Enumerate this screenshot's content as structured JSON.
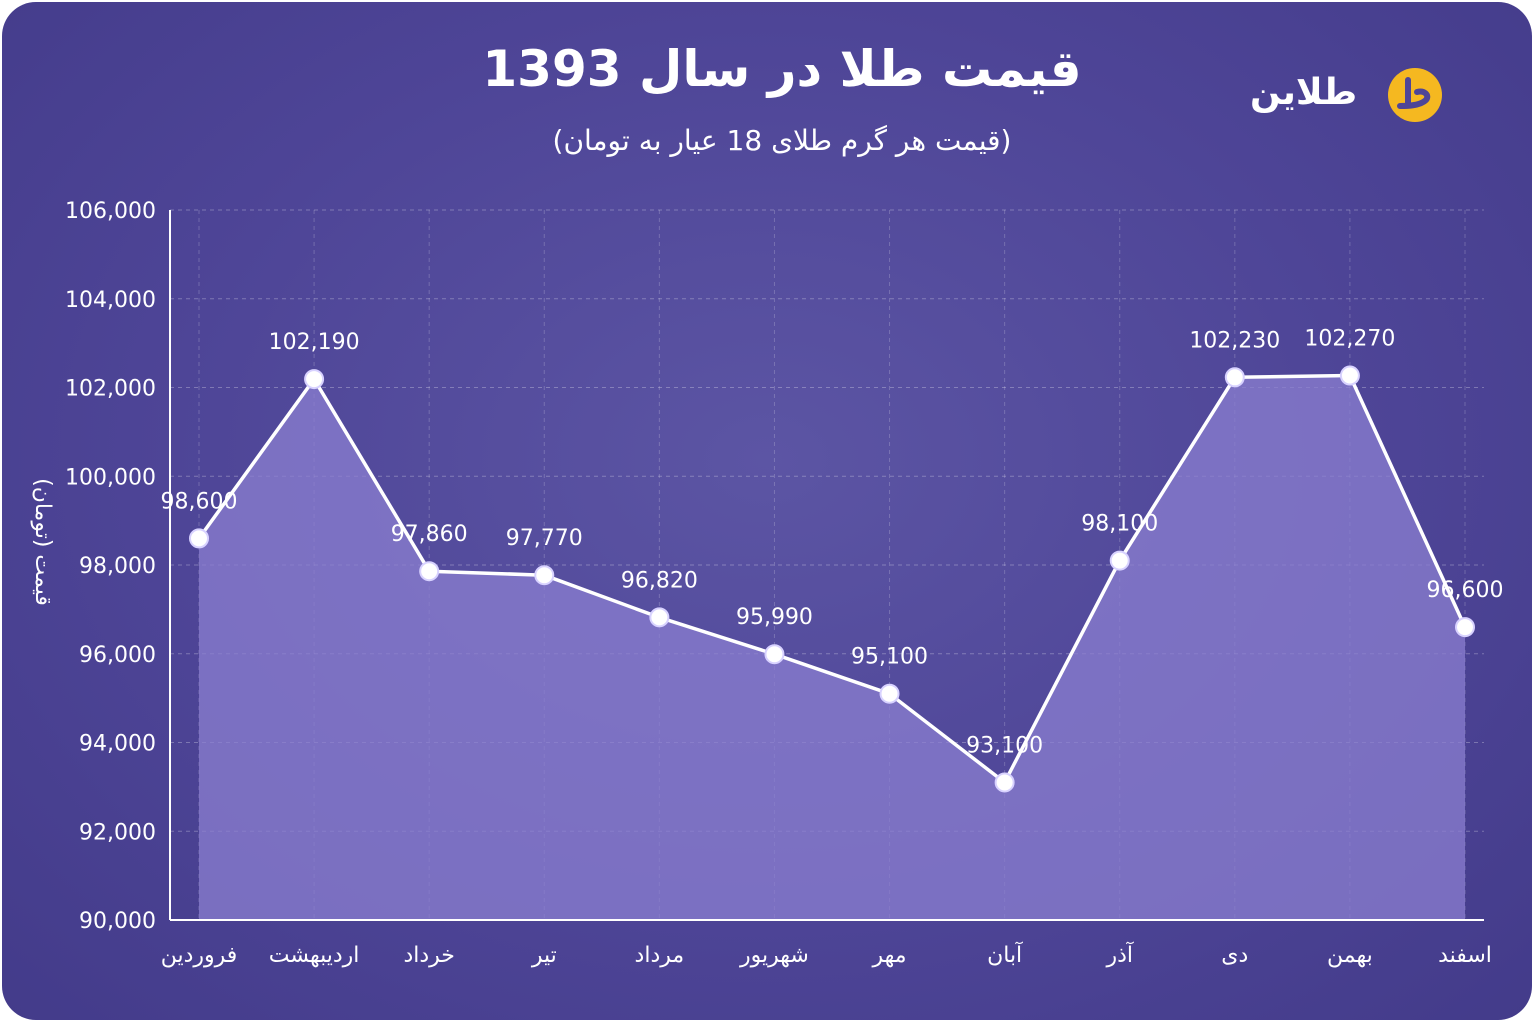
{
  "title": "قیمت طلا در سال 1393",
  "subtitle": "(قیمت هر گرم طلای 18 عیار به تومان)",
  "brand": {
    "name": "طلاین",
    "icon": "talain-logo-icon",
    "accent": "#f5b820"
  },
  "colors": {
    "background": "#4e4597",
    "line": "#ffffff",
    "area": "#8b7fd0"
  },
  "chart_data": {
    "type": "area",
    "title": "قیمت طلا در سال 1393",
    "subtitle": "(قیمت هر گرم طلای 18 عیار به تومان)",
    "ylabel": "قیمت (تومان)",
    "xlabel": "",
    "ylim": [
      90000,
      106000
    ],
    "yticks": [
      "90,000",
      "92,000",
      "94,000",
      "96,000",
      "98,000",
      "100,000",
      "102,000",
      "104,000",
      "106,000"
    ],
    "grid": true,
    "categories": [
      "فروردین",
      "اردیبهشت",
      "خرداد",
      "تیر",
      "مرداد",
      "شهریور",
      "مهر",
      "آبان",
      "آذر",
      "دی",
      "بهمن",
      "اسفند"
    ],
    "series": [
      {
        "values": [
          98600,
          102190,
          97860,
          97770,
          96820,
          95990,
          95100,
          93100,
          98100,
          102230,
          102270,
          96600
        ],
        "labels": [
          "98,600",
          "102,190",
          "97,860",
          "97,770",
          "96,820",
          "95,990",
          "95,100",
          "93,100",
          "98,100",
          "102,230",
          "102,270",
          "96,600"
        ]
      }
    ]
  }
}
